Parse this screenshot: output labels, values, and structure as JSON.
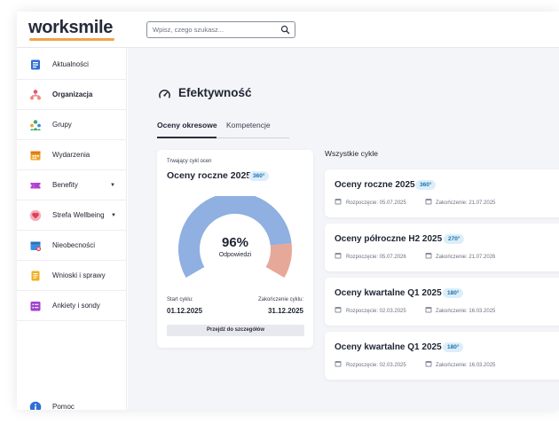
{
  "header": {
    "logo": "worksmile",
    "search_placeholder": "Wpisz, czego szukasz..."
  },
  "sidebar": {
    "items": [
      {
        "label": "Aktualności",
        "icon": "news-icon",
        "color": "#2f6fd6"
      },
      {
        "label": "Organizacja",
        "icon": "org-chart-icon",
        "color": "#e05a6a",
        "active": true
      },
      {
        "label": "Grupy",
        "icon": "groups-icon",
        "color": "#3aa86b"
      },
      {
        "label": "Wydarzenia",
        "icon": "calendar-icon",
        "color": "#f0a020"
      },
      {
        "label": "Benefity",
        "icon": "ticket-icon",
        "color": "#b040d0",
        "dropdown": true
      },
      {
        "label": "Strefa Wellbeing",
        "icon": "heart-icon",
        "color": "#e0506a",
        "dropdown": true
      },
      {
        "label": "Nieobecności",
        "icon": "absence-icon",
        "color": "#3a8fe0"
      },
      {
        "label": "Wnioski i sprawy",
        "icon": "requests-icon",
        "color": "#f0b020"
      },
      {
        "label": "Ankiety i sondy",
        "icon": "survey-icon",
        "color": "#a040d0"
      }
    ],
    "help_label": "Pomoc"
  },
  "main": {
    "title": "Efektywność",
    "tabs": [
      {
        "label": "Oceny okresowe",
        "active": true
      },
      {
        "label": "Kompetencje",
        "active": false
      }
    ],
    "current_cycle": {
      "label": "Trwający cykl ocen",
      "title": "Oceny roczne 2025",
      "badge": "360°",
      "percent": "96%",
      "percent_value": 96,
      "percent_label": "Odpowiedzi",
      "start_label": "Start cyklu:",
      "start_date": "01.12.2025",
      "end_label": "Zakończenie cyklu:",
      "end_date": "31.12.2025",
      "button": "Przejdź do szczegółów",
      "gauge_main_color": "#8fb0e0",
      "gauge_rest_color": "#e6a898"
    },
    "all_cycles_title": "Wszystkie cykle",
    "cycles": [
      {
        "title": "Oceny roczne 2025",
        "badge": "360°",
        "start": "Rozpoczęcie: 05.07.2025",
        "end": "Zakończenie: 21.07.2025"
      },
      {
        "title": "Oceny półroczne H2 2025",
        "badge": "270°",
        "start": "Rozpoczęcie: 05.07.2026",
        "end": "Zakończenie: 21.07.2026"
      },
      {
        "title": "Oceny kwartalne Q1 2025",
        "badge": "180°",
        "start": "Rozpoczęcie: 02.03.2025",
        "end": "Zakończenie: 16.03.2025"
      },
      {
        "title": "Oceny kwartalne Q1 2025",
        "badge": "180°",
        "start": "Rozpoczęcie: 02.03.2025",
        "end": "Zakończenie: 16.03.2025"
      }
    ]
  }
}
